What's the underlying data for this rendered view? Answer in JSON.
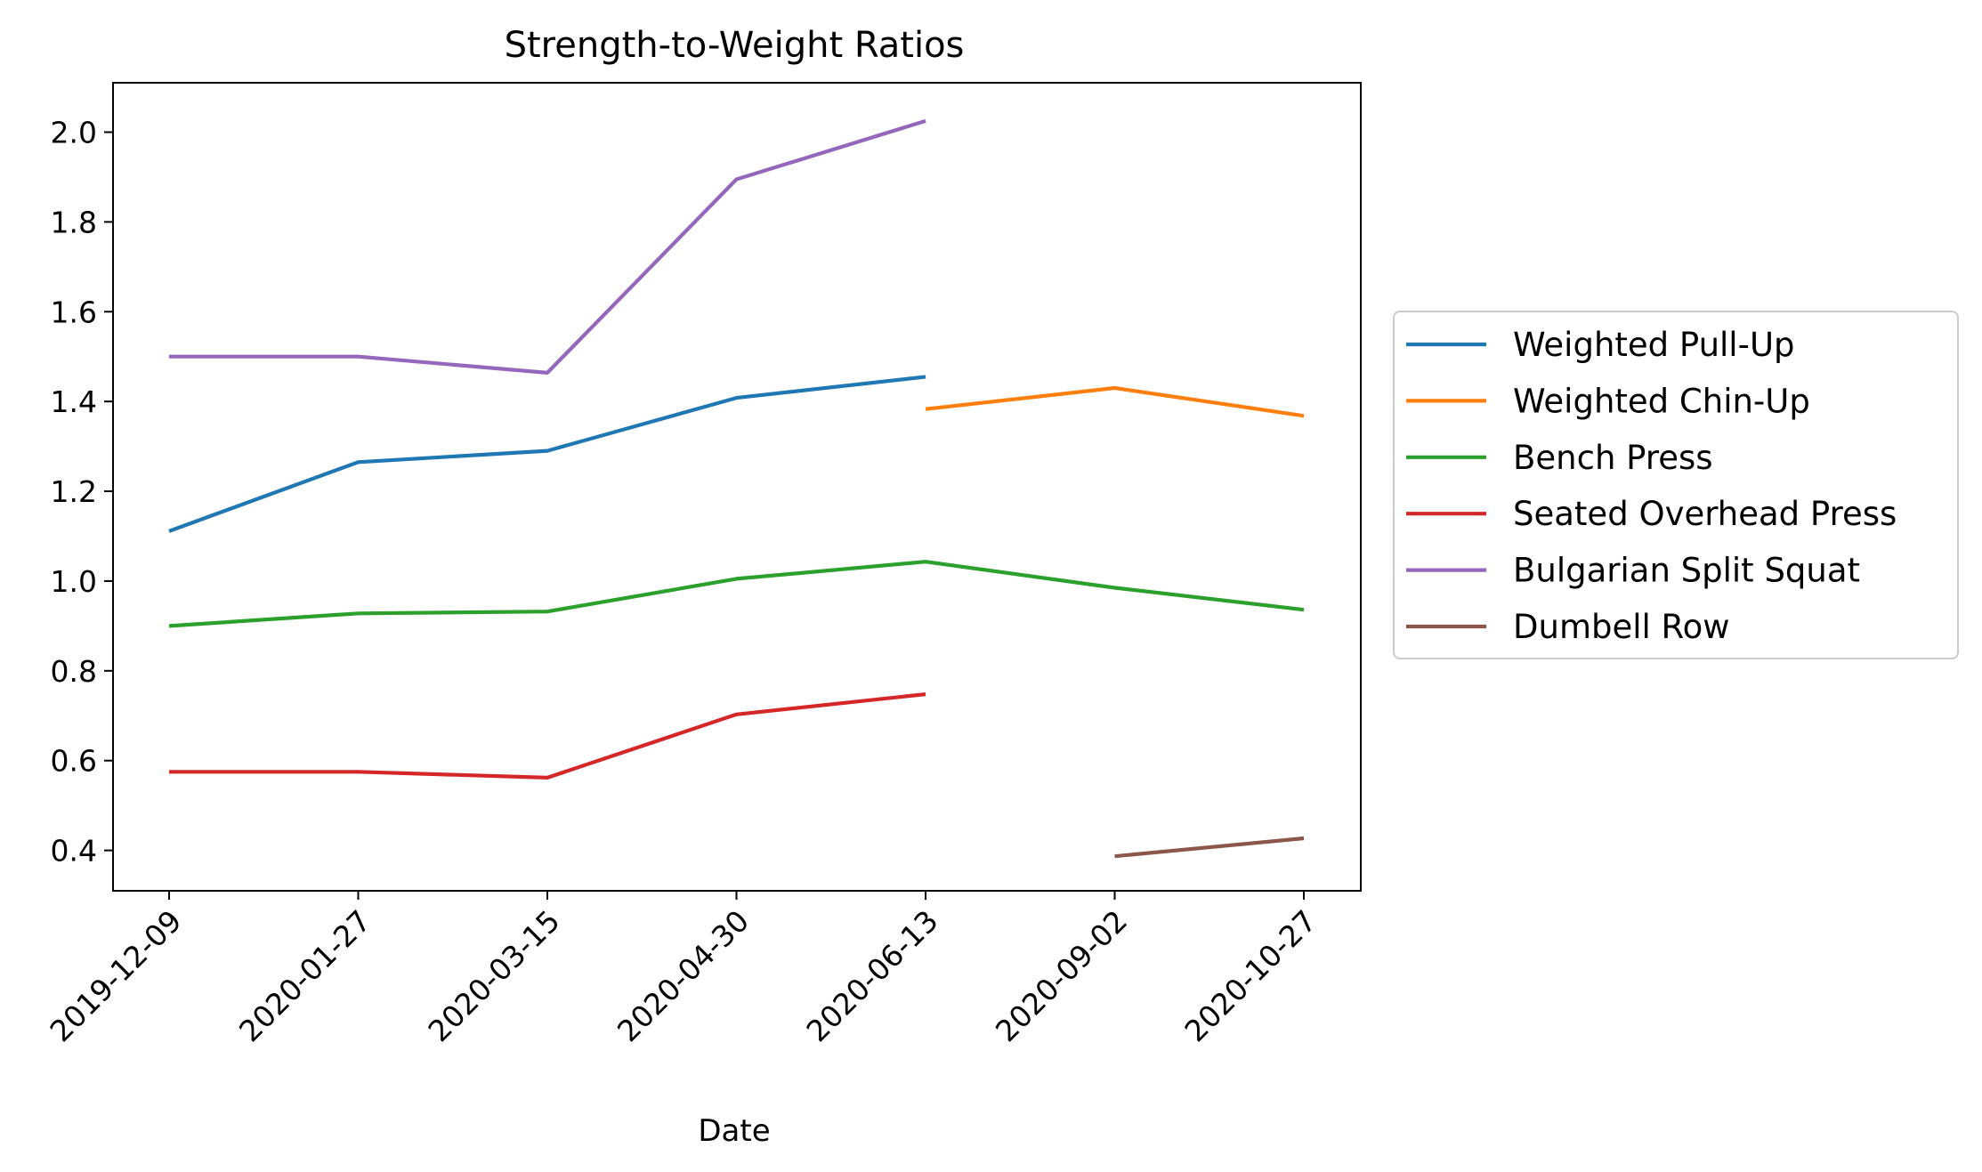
{
  "chart_data": {
    "type": "line",
    "title": "Strength-to-Weight Ratios",
    "xlabel": "Date",
    "ylabel": "",
    "categories": [
      "2019-12-09",
      "2020-01-27",
      "2020-03-15",
      "2020-04-30",
      "2020-06-13",
      "2020-09-02",
      "2020-10-27"
    ],
    "ylim": [
      0.31,
      2.11
    ],
    "yticks": [
      "0.4",
      "0.6",
      "0.8",
      "1.0",
      "1.2",
      "1.4",
      "1.6",
      "1.8",
      "2.0"
    ],
    "grid": false,
    "legend_position": "center-right-outside",
    "series": [
      {
        "name": "Weighted Pull-Up",
        "color": "#1f77b4",
        "values": [
          1.111,
          1.265,
          1.29,
          1.408,
          1.455,
          null,
          null
        ]
      },
      {
        "name": "Weighted Chin-Up",
        "color": "#ff7f0e",
        "values": [
          null,
          null,
          null,
          null,
          1.383,
          1.43,
          1.368
        ]
      },
      {
        "name": "Bench Press",
        "color": "#2ca02c",
        "values": [
          0.9,
          0.928,
          0.932,
          1.005,
          1.043,
          0.985,
          0.936
        ]
      },
      {
        "name": "Seated Overhead Press",
        "color": "#d62728",
        "values": [
          0.575,
          0.575,
          0.562,
          0.703,
          0.748,
          null,
          null
        ]
      },
      {
        "name": "Bulgarian Split Squat",
        "color": "#9467bd",
        "values": [
          1.5,
          1.5,
          1.464,
          1.895,
          2.025,
          null,
          null
        ]
      },
      {
        "name": "Dumbell Row",
        "color": "#8c564b",
        "values": [
          null,
          null,
          null,
          null,
          null,
          0.387,
          0.427
        ]
      }
    ]
  }
}
